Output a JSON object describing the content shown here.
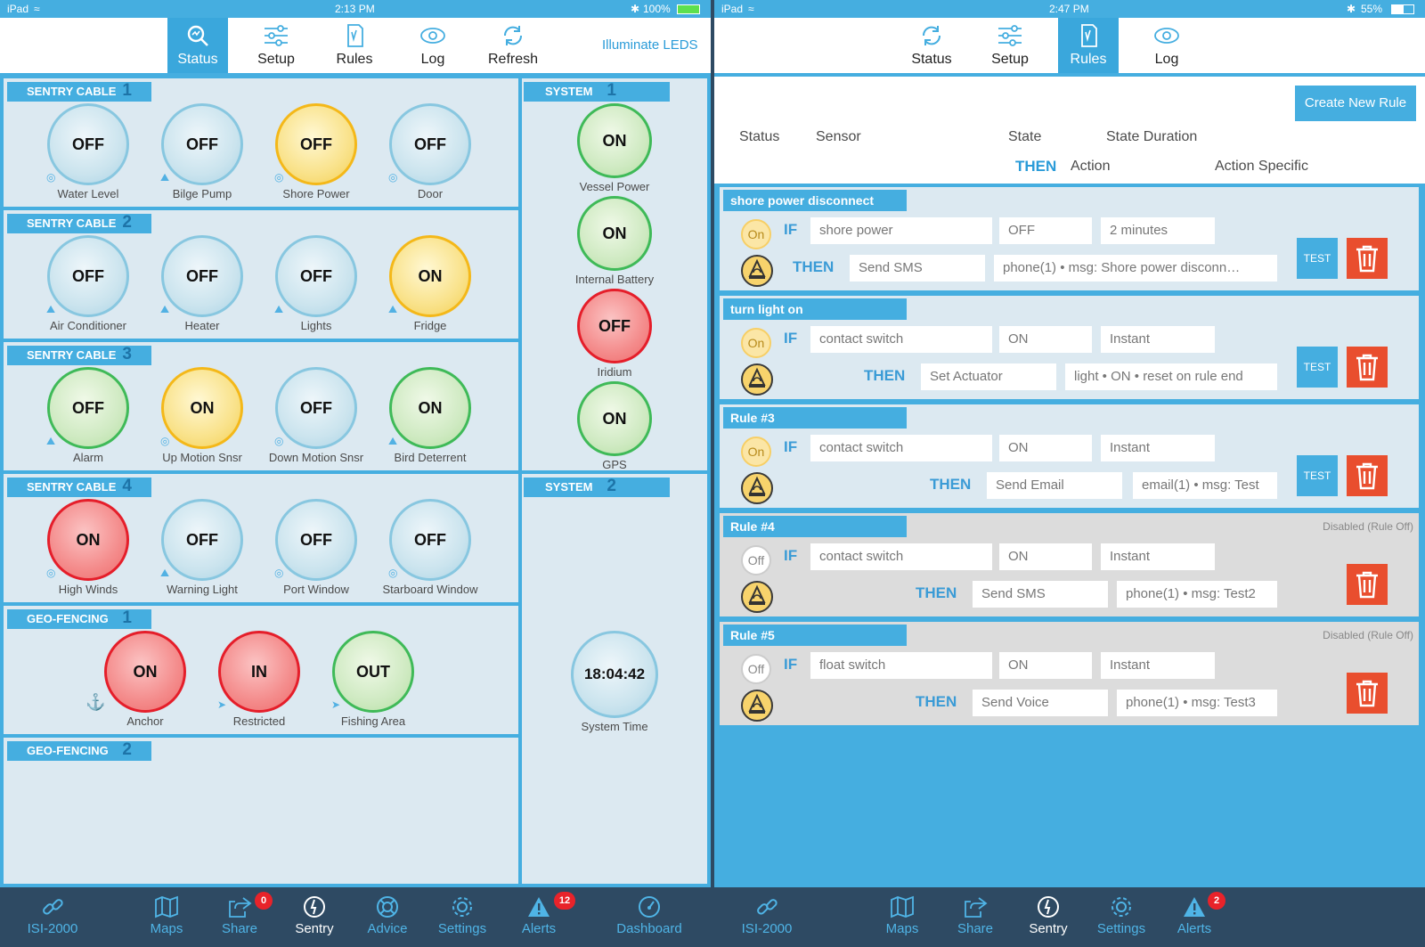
{
  "left": {
    "statusbar": {
      "device": "iPad",
      "time": "2:13 PM",
      "battery": "100%"
    },
    "nav": {
      "items": [
        {
          "label": "Status",
          "icon": "search-icon"
        },
        {
          "label": "Setup",
          "icon": "sliders-icon"
        },
        {
          "label": "Rules",
          "icon": "rules-icon"
        },
        {
          "label": "Log",
          "icon": "eye-icon"
        },
        {
          "label": "Refresh",
          "icon": "refresh-icon"
        }
      ],
      "link": "Illuminate LEDS"
    },
    "sections": {
      "sc1": {
        "title": "SENTRY CABLE",
        "num": "1"
      },
      "sc2": {
        "title": "SENTRY CABLE",
        "num": "2"
      },
      "sc3": {
        "title": "SENTRY CABLE",
        "num": "3"
      },
      "sc4": {
        "title": "SENTRY CABLE",
        "num": "4"
      },
      "gf1": {
        "title": "GEO-FENCING",
        "num": "1"
      },
      "gf2": {
        "title": "GEO-FENCING",
        "num": "2"
      },
      "sys1": {
        "title": "SYSTEM",
        "num": "1"
      },
      "sys2": {
        "title": "SYSTEM",
        "num": "2"
      }
    },
    "sensors": {
      "sc1": [
        {
          "state": "OFF",
          "label": "Water Level",
          "color": "blue"
        },
        {
          "state": "OFF",
          "label": "Bilge Pump",
          "color": "blue"
        },
        {
          "state": "OFF",
          "label": "Shore Power",
          "color": "yellow"
        },
        {
          "state": "OFF",
          "label": "Door",
          "color": "blue"
        }
      ],
      "sc2": [
        {
          "state": "OFF",
          "label": "Air Conditioner",
          "color": "blue"
        },
        {
          "state": "OFF",
          "label": "Heater",
          "color": "blue"
        },
        {
          "state": "OFF",
          "label": "Lights",
          "color": "blue"
        },
        {
          "state": "ON",
          "label": "Fridge",
          "color": "yellow"
        }
      ],
      "sc3": [
        {
          "state": "OFF",
          "label": "Alarm",
          "color": "green"
        },
        {
          "state": "ON",
          "label": "Up Motion Snsr",
          "color": "yellow"
        },
        {
          "state": "OFF",
          "label": "Down Motion Snsr",
          "color": "blue"
        },
        {
          "state": "ON",
          "label": "Bird Deterrent",
          "color": "green"
        }
      ],
      "sc4": [
        {
          "state": "ON",
          "label": "High Winds",
          "color": "red"
        },
        {
          "state": "OFF",
          "label": "Warning Light",
          "color": "blue"
        },
        {
          "state": "OFF",
          "label": "Port Window",
          "color": "blue"
        },
        {
          "state": "OFF",
          "label": "Starboard Window",
          "color": "blue"
        }
      ],
      "gf1": [
        {
          "state": "ON",
          "label": "Anchor",
          "color": "red"
        },
        {
          "state": "IN",
          "label": "Restricted",
          "color": "red"
        },
        {
          "state": "OUT",
          "label": "Fishing Area",
          "color": "green"
        }
      ],
      "sys1": [
        {
          "state": "ON",
          "label": "Vessel Power",
          "color": "green"
        },
        {
          "state": "ON",
          "label": "Internal Battery",
          "color": "green"
        },
        {
          "state": "OFF",
          "label": "Iridium",
          "color": "red"
        },
        {
          "state": "ON",
          "label": "GPS",
          "color": "green"
        }
      ],
      "sys2": [
        {
          "state": "18:04:42",
          "label": "System Time",
          "color": "blue"
        }
      ]
    },
    "tabs": [
      {
        "label": "ISI-2000",
        "icon": "link-icon"
      },
      {
        "label": "Maps",
        "icon": "map-icon"
      },
      {
        "label": "Share",
        "icon": "share-icon",
        "badge": "0"
      },
      {
        "label": "Sentry",
        "icon": "sentry-icon"
      },
      {
        "label": "Advice",
        "icon": "lifebuoy-icon"
      },
      {
        "label": "Settings",
        "icon": "gear-icon"
      },
      {
        "label": "Alerts",
        "icon": "alert-icon",
        "badge": "12"
      },
      {
        "label": "Dashboard",
        "icon": "dashboard-icon"
      }
    ]
  },
  "right": {
    "statusbar": {
      "device": "iPad",
      "time": "2:47 PM",
      "battery": "55%"
    },
    "nav": {
      "items": [
        {
          "label": "Status",
          "icon": "refresh-icon"
        },
        {
          "label": "Setup",
          "icon": "sliders-icon"
        },
        {
          "label": "Rules",
          "icon": "rules-icon"
        },
        {
          "label": "Log",
          "icon": "eye-icon"
        }
      ]
    },
    "create_label": "Create New Rule",
    "columns": {
      "status": "Status",
      "sensor": "Sensor",
      "state": "State",
      "duration": "State Duration",
      "then": "THEN",
      "action": "Action",
      "action_specific": "Action Specific"
    },
    "if_kw": "IF",
    "then_kw": "THEN",
    "test_label": "TEST",
    "disabled_label": "Disabled (Rule Off)",
    "rules": [
      {
        "name": "shore power disconnect",
        "status": "On",
        "sensor": "shore power",
        "state": "OFF",
        "duration": "2 minutes",
        "action": "Send SMS",
        "specific": "phone(1) • msg: Shore power disconn…",
        "enabled": true
      },
      {
        "name": "turn light on",
        "status": "On",
        "sensor": "contact switch",
        "state": "ON",
        "duration": "Instant",
        "action": "Set Actuator",
        "specific": "light • ON • reset on rule end",
        "enabled": true
      },
      {
        "name": "Rule #3",
        "status": "On",
        "sensor": "contact switch",
        "state": "ON",
        "duration": "Instant",
        "action": "Send Email",
        "specific": "email(1) • msg: Test",
        "enabled": true
      },
      {
        "name": "Rule #4",
        "status": "Off",
        "sensor": "contact switch",
        "state": "ON",
        "duration": "Instant",
        "action": "Send SMS",
        "specific": "phone(1) • msg: Test2",
        "enabled": false
      },
      {
        "name": "Rule #5",
        "status": "Off",
        "sensor": "float switch",
        "state": "ON",
        "duration": "Instant",
        "action": "Send Voice",
        "specific": "phone(1) • msg: Test3",
        "enabled": false
      }
    ],
    "tabs": [
      {
        "label": "ISI-2000",
        "icon": "link-icon"
      },
      {
        "label": "Maps",
        "icon": "map-icon"
      },
      {
        "label": "Share",
        "icon": "share-icon"
      },
      {
        "label": "Sentry",
        "icon": "sentry-icon"
      },
      {
        "label": "Settings",
        "icon": "gear-icon"
      },
      {
        "label": "Alerts",
        "icon": "alert-icon",
        "badge": "2"
      }
    ]
  },
  "colors": {
    "accent": "#45aee0",
    "dark": "#2e4a63",
    "panel": "#dce9f1",
    "red": "#e51e2a",
    "delete": "#e94e2e"
  }
}
